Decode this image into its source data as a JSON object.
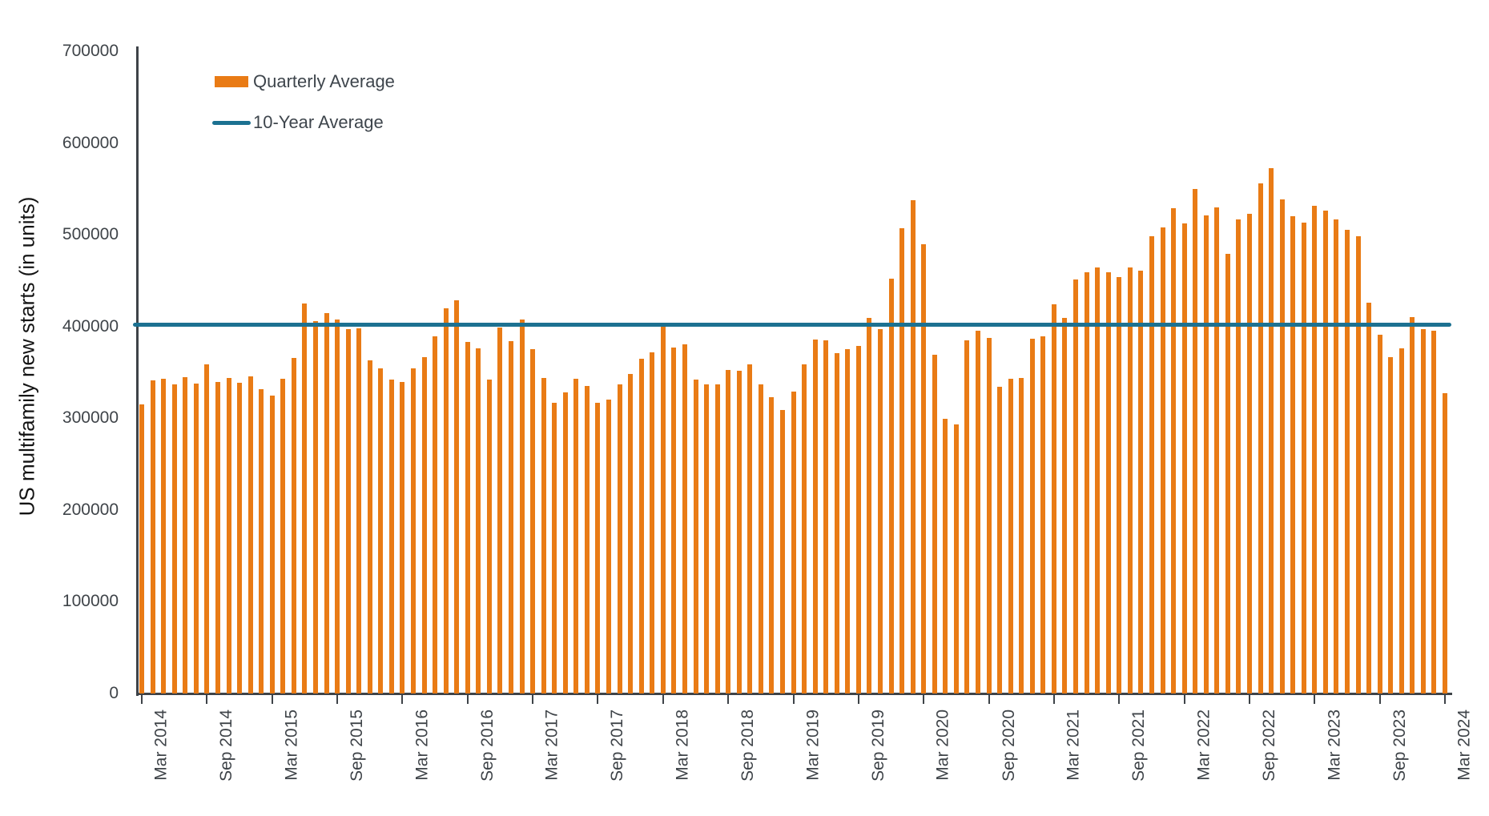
{
  "chart": {
    "ylabel": "US multifamily new starts (in units)",
    "legend": {
      "quarterly": "Quarterly Average",
      "ten_year": "10-Year Average"
    },
    "colors": {
      "bar": "#E97B15",
      "line": "#1C7191",
      "axis": "#3E4348",
      "tick_text": "#3F4449"
    }
  },
  "chart_data": {
    "type": "bar",
    "title": "",
    "xlabel": "",
    "ylabel": "US multifamily new starts (in units)",
    "ylim": [
      0,
      700000
    ],
    "ytick_step": 100000,
    "xtick_every": 6,
    "grid": false,
    "legend_position": "top-left",
    "bar_color": "#E97B15",
    "line_color": "#1C7191",
    "x": [
      "Mar 2014",
      "Apr 2014",
      "May 2014",
      "Jun 2014",
      "Jul 2014",
      "Aug 2014",
      "Sep 2014",
      "Oct 2014",
      "Nov 2014",
      "Dec 2014",
      "Jan 2015",
      "Feb 2015",
      "Mar 2015",
      "Apr 2015",
      "May 2015",
      "Jun 2015",
      "Jul 2015",
      "Aug 2015",
      "Sep 2015",
      "Oct 2015",
      "Nov 2015",
      "Dec 2015",
      "Jan 2016",
      "Feb 2016",
      "Mar 2016",
      "Apr 2016",
      "May 2016",
      "Jun 2016",
      "Jul 2016",
      "Aug 2016",
      "Sep 2016",
      "Oct 2016",
      "Nov 2016",
      "Dec 2016",
      "Jan 2017",
      "Feb 2017",
      "Mar 2017",
      "Apr 2017",
      "May 2017",
      "Jun 2017",
      "Jul 2017",
      "Aug 2017",
      "Sep 2017",
      "Oct 2017",
      "Nov 2017",
      "Dec 2017",
      "Jan 2018",
      "Feb 2018",
      "Mar 2018",
      "Apr 2018",
      "May 2018",
      "Jun 2018",
      "Jul 2018",
      "Aug 2018",
      "Sep 2018",
      "Oct 2018",
      "Nov 2018",
      "Dec 2018",
      "Jan 2019",
      "Feb 2019",
      "Mar 2019",
      "Apr 2019",
      "May 2019",
      "Jun 2019",
      "Jul 2019",
      "Aug 2019",
      "Sep 2019",
      "Oct 2019",
      "Nov 2019",
      "Dec 2019",
      "Jan 2020",
      "Feb 2020",
      "Mar 2020",
      "Apr 2020",
      "May 2020",
      "Jun 2020",
      "Jul 2020",
      "Aug 2020",
      "Sep 2020",
      "Oct 2020",
      "Nov 2020",
      "Dec 2020",
      "Jan 2021",
      "Feb 2021",
      "Mar 2021",
      "Apr 2021",
      "May 2021",
      "Jun 2021",
      "Jul 2021",
      "Aug 2021",
      "Sep 2021",
      "Oct 2021",
      "Nov 2021",
      "Dec 2021",
      "Jan 2022",
      "Feb 2022",
      "Mar 2022",
      "Apr 2022",
      "May 2022",
      "Jun 2022",
      "Jul 2022",
      "Aug 2022",
      "Sep 2022",
      "Oct 2022",
      "Nov 2022",
      "Dec 2022",
      "Jan 2023",
      "Feb 2023",
      "Mar 2023",
      "Apr 2023",
      "May 2023",
      "Jun 2023",
      "Jul 2023",
      "Aug 2023",
      "Sep 2023",
      "Oct 2023",
      "Nov 2023",
      "Dec 2023",
      "Jan 2024",
      "Feb 2024",
      "Mar 2024"
    ],
    "series": [
      {
        "name": "Quarterly Average",
        "values": [
          315000,
          341000,
          343000,
          337000,
          345000,
          338000,
          359000,
          340000,
          344000,
          339000,
          346000,
          332000,
          325000,
          343000,
          366000,
          425000,
          406000,
          415000,
          408000,
          397000,
          398000,
          363000,
          354000,
          342000,
          340000,
          354000,
          367000,
          389000,
          420000,
          429000,
          383000,
          376000,
          342000,
          399000,
          384000,
          408000,
          375000,
          344000,
          317000,
          328000,
          343000,
          335000,
          317000,
          320000,
          337000,
          348000,
          365000,
          372000,
          402000,
          377000,
          381000,
          342000,
          337000,
          337000,
          353000,
          352000,
          359000,
          337000,
          323000,
          309000,
          329000,
          359000,
          386000,
          385000,
          371000,
          375000,
          379000,
          409000,
          397000,
          452000,
          507000,
          538000,
          490000,
          369000,
          299000,
          293000,
          385000,
          395000,
          388000,
          334000,
          343000,
          344000,
          387000,
          389000,
          424000,
          409000,
          451000,
          459000,
          464000,
          459000,
          454000,
          464000,
          461000,
          498000,
          508000,
          529000,
          512000,
          550000,
          521000,
          530000,
          479000,
          517000,
          523000,
          556000,
          573000,
          539000,
          520000,
          513000,
          532000,
          526000,
          517000,
          505000,
          498000,
          426000,
          391000,
          367000,
          376000,
          410000,
          397000,
          395000,
          327000
        ]
      }
    ],
    "reference_line": {
      "name": "10-Year Average",
      "value": 402000
    }
  }
}
